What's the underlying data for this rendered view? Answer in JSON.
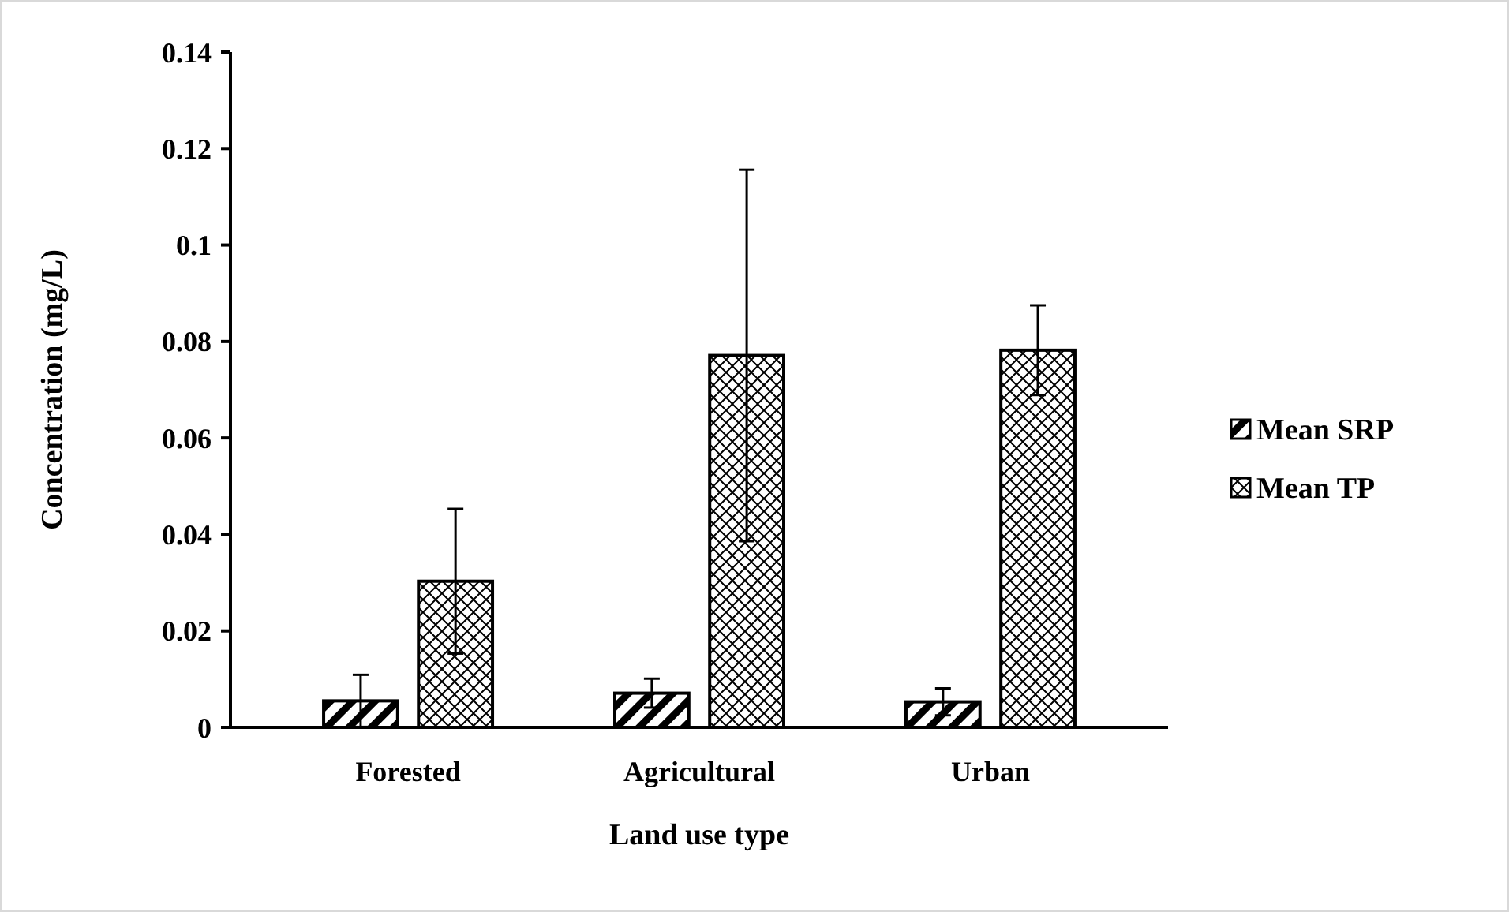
{
  "chart_data": {
    "type": "bar",
    "xlabel": "Land use type",
    "ylabel": "Concentration (mg/L)",
    "categories": [
      "Forested",
      "Agricultural",
      "Urban"
    ],
    "series": [
      {
        "name": "Mean SRP",
        "color": "#000000",
        "values": [
          0.0055,
          0.0071,
          0.0053
        ],
        "errors": [
          0.0054,
          0.003,
          0.0028
        ]
      },
      {
        "name": "Mean TP",
        "color": "#000000",
        "values": [
          0.0303,
          0.0771,
          0.0782
        ],
        "errors": [
          0.015,
          0.0385,
          0.0093
        ]
      }
    ],
    "ylim": [
      0,
      0.14
    ],
    "yticks": [
      0,
      0.02,
      0.04,
      0.06,
      0.08,
      {
        "value": 0.1,
        "label": "0.1"
      },
      0.12,
      0.14
    ],
    "grid": false,
    "legend": "right"
  }
}
